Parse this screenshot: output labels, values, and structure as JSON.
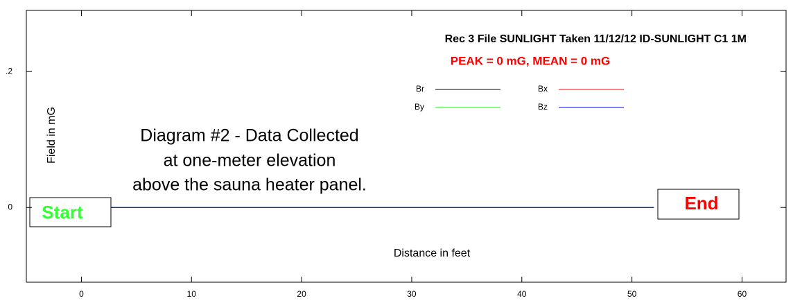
{
  "chart_data": {
    "type": "line",
    "title": "Rec 3  File SUNLIGHT  Taken 11/12/12  ID-SUNLIGHT C1 1M",
    "subtitle": "PEAK = 0 mG, MEAN = 0 mG",
    "x_label": "Distance in feet",
    "y_label": "Field in mG",
    "annotations": [
      "Diagram #2 - Data Collected",
      "at one-meter elevation",
      "above the sauna heater panel."
    ],
    "start_label": "Start",
    "end_label": "End",
    "x": [
      0,
      52
    ],
    "series": [
      {
        "name": "Br",
        "color": "#000000",
        "values": [
          0,
          0
        ]
      },
      {
        "name": "Bx",
        "color": "#ff0000",
        "values": [
          0,
          0
        ]
      },
      {
        "name": "By",
        "color": "#00ff00",
        "values": [
          0,
          0
        ]
      },
      {
        "name": "Bz",
        "color": "#0000ff",
        "values": [
          0,
          0
        ]
      }
    ],
    "xlim": [
      -5,
      64
    ],
    "xticks": [
      0,
      10,
      20,
      30,
      40,
      50,
      60
    ],
    "ylim": [
      -0.11,
      0.29
    ],
    "yticks": [
      0,
      {
        "value": 0.2,
        "label": ".2"
      }
    ]
  }
}
